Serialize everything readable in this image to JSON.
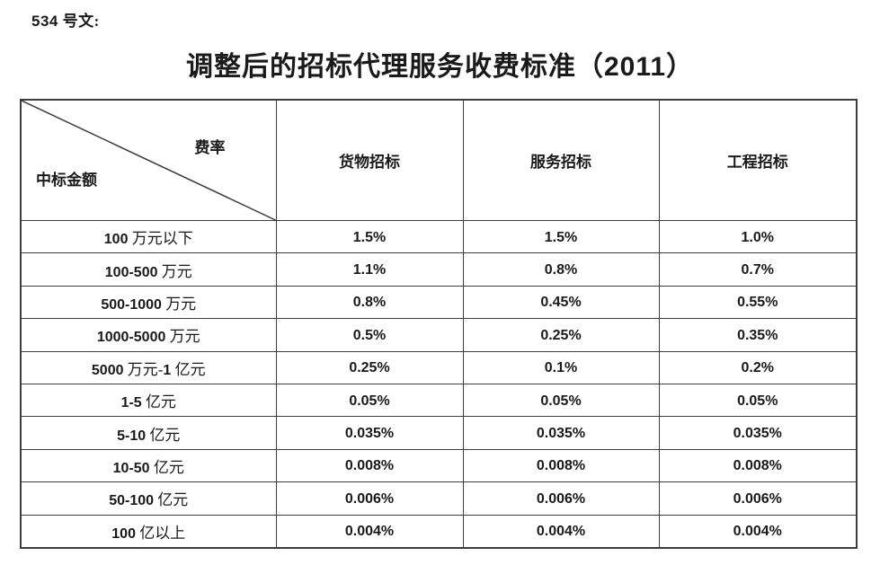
{
  "page": {
    "doc_label": "534 号文:",
    "title": "调整后的招标代理服务收费标准（2011）"
  },
  "table": {
    "corner": {
      "top_right": "费率",
      "bottom_left": "中标金额"
    },
    "columns": [
      "货物招标",
      "服务招标",
      "工程招标"
    ],
    "rows": [
      {
        "label": "100 万元以下",
        "values": [
          "1.5%",
          "1.5%",
          "1.0%"
        ]
      },
      {
        "label": "100-500 万元",
        "values": [
          "1.1%",
          "0.8%",
          "0.7%"
        ]
      },
      {
        "label": "500-1000 万元",
        "values": [
          "0.8%",
          "0.45%",
          "0.55%"
        ]
      },
      {
        "label": "1000-5000 万元",
        "values": [
          "0.5%",
          "0.25%",
          "0.35%"
        ]
      },
      {
        "label": "5000 万元-1 亿元",
        "values": [
          "0.25%",
          "0.1%",
          "0.2%"
        ]
      },
      {
        "label": "1-5 亿元",
        "values": [
          "0.05%",
          "0.05%",
          "0.05%"
        ]
      },
      {
        "label": "5-10 亿元",
        "values": [
          "0.035%",
          "0.035%",
          "0.035%"
        ]
      },
      {
        "label": "10-50 亿元",
        "values": [
          "0.008%",
          "0.008%",
          "0.008%"
        ]
      },
      {
        "label": "50-100 亿元",
        "values": [
          "0.006%",
          "0.006%",
          "0.006%"
        ]
      },
      {
        "label": "100 亿以上",
        "values": [
          "0.004%",
          "0.004%",
          "0.004%"
        ]
      }
    ]
  },
  "colors": {
    "text": "#1a1a1a",
    "border": "#3d3d3d",
    "background": "#ffffff"
  }
}
